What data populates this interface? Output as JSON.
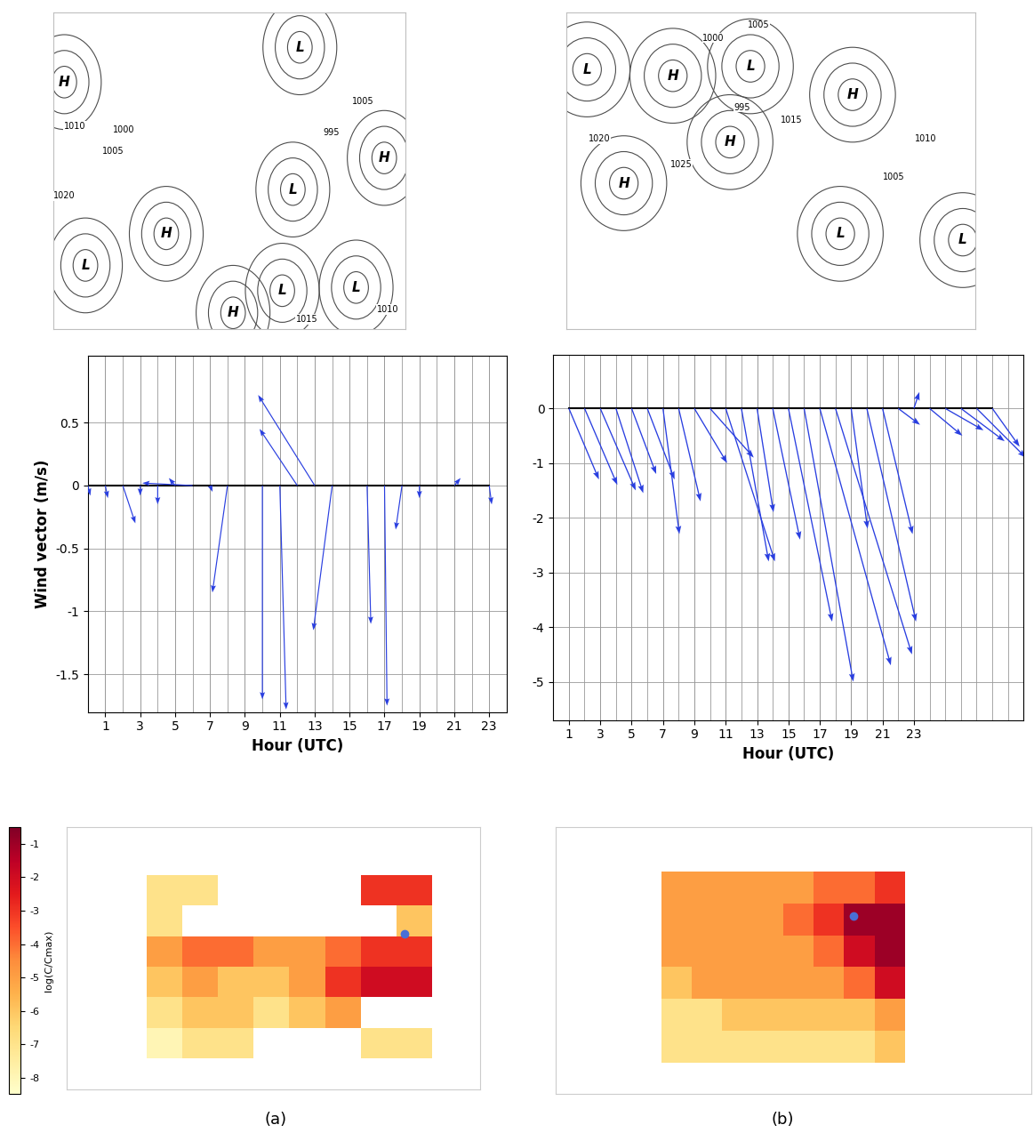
{
  "chart_data": [
    {
      "type": "quiver",
      "xlabel": "Hour (UTC)",
      "ylabel": "Wind vector (m/s)",
      "color": "#2a3fe0",
      "grid": true,
      "xlim": [
        0,
        24
      ],
      "ylim": [
        -1.8,
        1.03
      ],
      "xticks": [
        1,
        3,
        5,
        7,
        9,
        11,
        13,
        15,
        17,
        19,
        21,
        23
      ],
      "yticks": [
        0.5,
        0,
        -0.5,
        -1,
        -1.5
      ],
      "x": [
        0,
        1,
        2,
        3,
        4,
        5,
        6,
        7,
        8,
        10,
        11,
        12,
        13,
        14,
        16,
        17,
        18,
        19,
        21,
        23
      ],
      "u": [
        0.02,
        0.02,
        0.1,
        0.0,
        0.0,
        -0.05,
        -0.4,
        0.02,
        -0.12,
        0.0,
        0.05,
        -0.3,
        -0.45,
        -0.15,
        0.03,
        0.02,
        -0.05,
        0.0,
        0.05,
        0.02
      ],
      "v": [
        -0.08,
        -0.1,
        -0.3,
        -0.08,
        -0.15,
        0.06,
        0.02,
        -0.05,
        -0.85,
        -1.7,
        -1.78,
        0.45,
        0.72,
        -1.15,
        -1.1,
        -1.75,
        -0.35,
        -0.1,
        0.06,
        -0.15
      ]
    },
    {
      "type": "quiver",
      "xlabel": "Hour (UTC)",
      "color": "#2a3fe0",
      "grid": true,
      "xlim": [
        0,
        30
      ],
      "ylim": [
        -5.7,
        0.98
      ],
      "xticks": [
        1,
        3,
        5,
        7,
        9,
        11,
        13,
        15,
        17,
        19,
        21,
        23
      ],
      "yticks": [
        0,
        -1,
        -2,
        -3,
        -4,
        -5
      ],
      "x": [
        1,
        2,
        3,
        4,
        5,
        6,
        7,
        8,
        9,
        10,
        11,
        12,
        13,
        14,
        15,
        16,
        17,
        18,
        19,
        20,
        21,
        22,
        23,
        24,
        25,
        26,
        27,
        28
      ],
      "u": [
        0.55,
        0.6,
        0.65,
        0.5,
        0.45,
        0.5,
        0.3,
        0.4,
        0.6,
        0.8,
        0.9,
        0.5,
        0.3,
        0.5,
        0.8,
        0.9,
        1.3,
        1.4,
        0.3,
        0.9,
        0.55,
        0.4,
        0.1,
        0.6,
        0.7,
        0.8,
        0.9,
        0.5
      ],
      "v": [
        -1.3,
        -1.4,
        -1.5,
        -1.55,
        -1.2,
        -1.3,
        -2.3,
        -1.7,
        -1.0,
        -0.9,
        -2.8,
        -2.8,
        -1.9,
        -2.4,
        -3.9,
        -5.0,
        -4.7,
        -4.5,
        -2.2,
        -3.9,
        -2.3,
        -0.3,
        0.3,
        -0.5,
        -0.4,
        -0.6,
        -0.9,
        -0.7
      ]
    }
  ],
  "synoptic_maps": [
    {
      "centres": [
        {
          "label": "H",
          "x": 0.03,
          "y": 0.78
        },
        {
          "label": "L",
          "x": 0.7,
          "y": 0.89
        },
        {
          "label": "H",
          "x": 0.32,
          "y": 0.3
        },
        {
          "label": "L",
          "x": 0.68,
          "y": 0.44
        },
        {
          "label": "L",
          "x": 0.09,
          "y": 0.2
        },
        {
          "label": "H",
          "x": 0.51,
          "y": 0.05
        },
        {
          "label": "L",
          "x": 0.65,
          "y": 0.12
        },
        {
          "label": "L",
          "x": 0.86,
          "y": 0.13
        },
        {
          "label": "H",
          "x": 0.94,
          "y": 0.54
        }
      ],
      "isobar_labels": [
        {
          "text": "1010",
          "x": 0.06,
          "y": 0.64
        },
        {
          "text": "1000",
          "x": 0.2,
          "y": 0.63
        },
        {
          "text": "1005",
          "x": 0.17,
          "y": 0.56
        },
        {
          "text": "995",
          "x": 0.79,
          "y": 0.62
        },
        {
          "text": "1020",
          "x": 0.03,
          "y": 0.42
        },
        {
          "text": "1015",
          "x": 0.72,
          "y": 0.03
        },
        {
          "text": "1010",
          "x": 0.95,
          "y": 0.06
        },
        {
          "text": "1005",
          "x": 0.88,
          "y": 0.72
        }
      ]
    },
    {
      "centres": [
        {
          "label": "L",
          "x": 0.05,
          "y": 0.82
        },
        {
          "label": "H",
          "x": 0.26,
          "y": 0.8
        },
        {
          "label": "L",
          "x": 0.45,
          "y": 0.83
        },
        {
          "label": "H",
          "x": 0.7,
          "y": 0.74
        },
        {
          "label": "H",
          "x": 0.14,
          "y": 0.46
        },
        {
          "label": "H",
          "x": 0.4,
          "y": 0.59
        },
        {
          "label": "L",
          "x": 0.67,
          "y": 0.3
        },
        {
          "label": "L",
          "x": 0.97,
          "y": 0.28
        }
      ],
      "isobar_labels": [
        {
          "text": "1020",
          "x": 0.08,
          "y": 0.6
        },
        {
          "text": "1025",
          "x": 0.28,
          "y": 0.52
        },
        {
          "text": "1005",
          "x": 0.47,
          "y": 0.96
        },
        {
          "text": "1000",
          "x": 0.36,
          "y": 0.92
        },
        {
          "text": "995",
          "x": 0.43,
          "y": 0.7
        },
        {
          "text": "1015",
          "x": 0.55,
          "y": 0.66
        },
        {
          "text": "1010",
          "x": 0.88,
          "y": 0.6
        },
        {
          "text": "1005",
          "x": 0.8,
          "y": 0.48
        }
      ]
    }
  ],
  "concentration_maps": [
    {
      "cells": [
        [
          -7,
          -7,
          null,
          null,
          null,
          null,
          -3,
          -3
        ],
        [
          -7,
          null,
          null,
          null,
          null,
          null,
          null,
          -6
        ],
        [
          -5,
          -4,
          -4,
          -5,
          -5,
          -4,
          -3,
          -3
        ],
        [
          -6,
          -5,
          -6,
          -6,
          -5,
          -3,
          -2,
          -2
        ],
        [
          -7,
          -6,
          -6,
          -7,
          -6,
          -5,
          null,
          null
        ],
        [
          -8,
          -7,
          -7,
          null,
          null,
          null,
          -7,
          -7
        ]
      ],
      "source": [
        7.25,
        1.9
      ]
    },
    {
      "cells": [
        [
          -5,
          -5,
          -5,
          -5,
          -5,
          -4,
          -4,
          -3
        ],
        [
          -5,
          -5,
          -5,
          -5,
          -4,
          -3,
          -1,
          -1
        ],
        [
          -5,
          -5,
          -5,
          -5,
          -5,
          -4,
          -2,
          -1
        ],
        [
          -6,
          -5,
          -5,
          -5,
          -5,
          -5,
          -4,
          -2
        ],
        [
          -7,
          -7,
          -6,
          -6,
          -6,
          -6,
          -6,
          -5
        ],
        [
          -7,
          -7,
          -7,
          -7,
          -7,
          -7,
          -7,
          -6
        ]
      ],
      "source": [
        6.3,
        1.4
      ]
    }
  ],
  "colorbar": {
    "label": "log(C/Cmax)",
    "range": [
      -8.5,
      -0.5
    ],
    "ticks": [
      -1,
      -2,
      -3,
      -4,
      -5,
      -6,
      -7,
      -8
    ]
  },
  "panel_labels": [
    "(a)",
    "(b)"
  ]
}
